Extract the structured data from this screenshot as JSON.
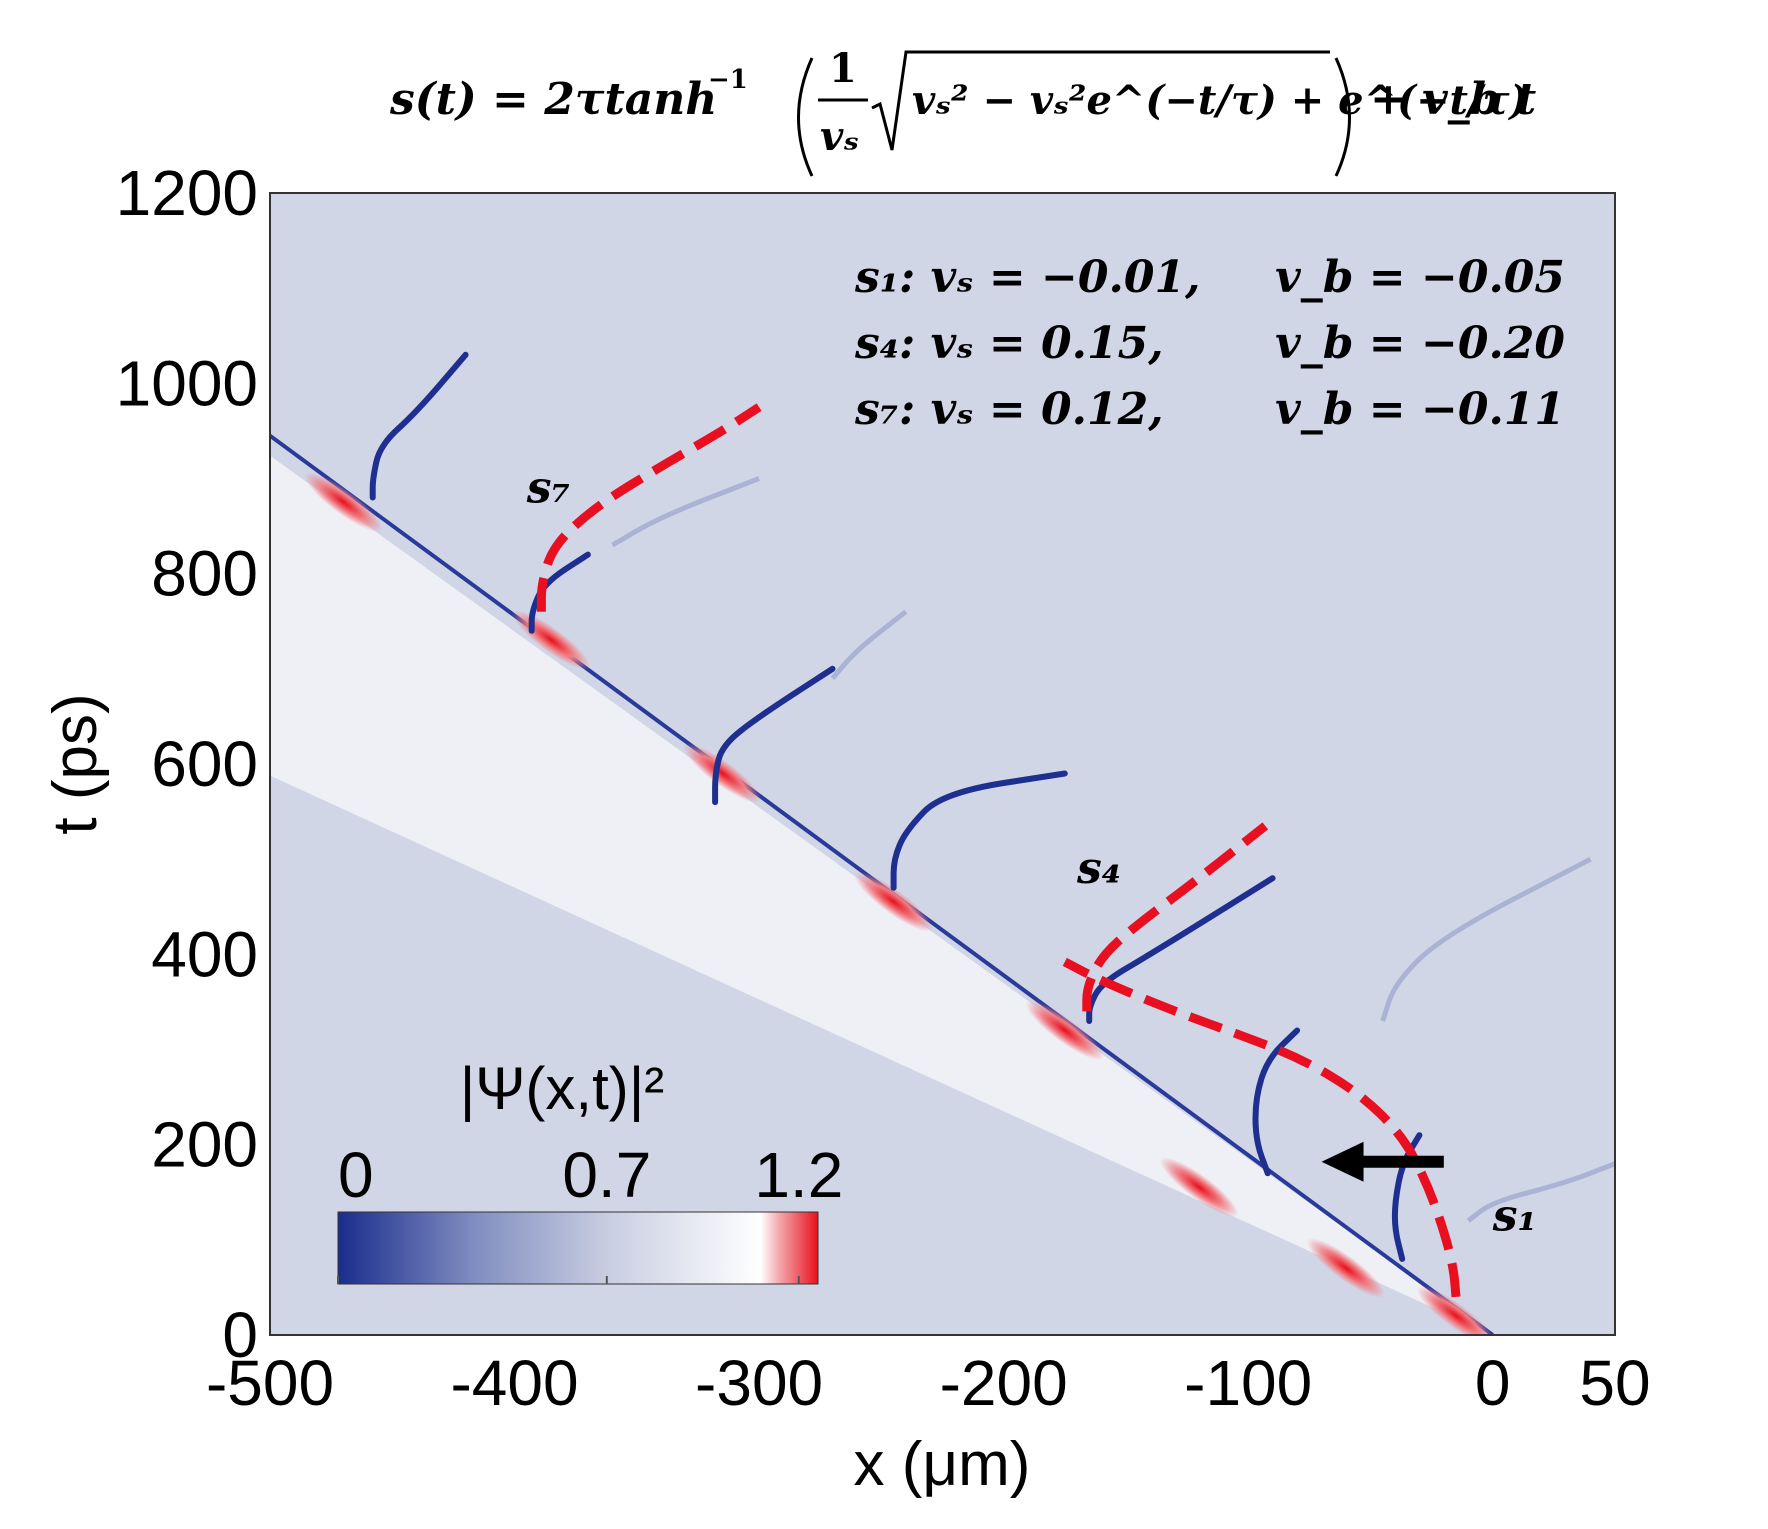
{
  "chart_data": {
    "type": "heatmap",
    "title": "s(t) = 2τtanh⁻¹((1/vₛ)√(vₛ² − vₛ²e^(−t/τ) + e^(−t/τ))) + v_b t",
    "formula": {
      "lhs": "s(t) = 2τtanh",
      "inverse_exponent": "−1",
      "frac_numerator": "1",
      "frac_denominator": "vₛ",
      "radicand": "vₛ² − vₛ²e^(−t/τ) + e^(−t/τ)",
      "rhs": "+ v_b t"
    },
    "xlabel": "x (μm)",
    "ylabel": "t (ps)",
    "xlim": [
      -500,
      50
    ],
    "ylim": [
      0,
      1200
    ],
    "x_ticks": [
      -500,
      -400,
      -300,
      -200,
      -100,
      0,
      50
    ],
    "x_tick_labels": [
      "-500",
      "-400",
      "-300",
      "-200",
      "-100",
      "0",
      "50"
    ],
    "y_ticks": [
      0,
      200,
      400,
      600,
      800,
      1000,
      1200
    ],
    "y_tick_labels": [
      "0",
      "200",
      "400",
      "600",
      "800",
      "1000",
      "1200"
    ],
    "colorbar": {
      "label": "|Ψ(x,t)|²",
      "ticks": [
        0,
        0.7,
        1.2
      ],
      "tick_labels": [
        "0",
        "0.7",
        "1.2"
      ],
      "range": [
        0,
        1.25
      ],
      "colors": {
        "low": "#1a2d8c",
        "mid": "#c6cbe0",
        "high": "#ffffff",
        "peak": "#e8101c"
      }
    },
    "background_color": "#d1d6e7",
    "soliton_params": [
      {
        "label": "s₁",
        "vs_text": "s₁: vₛ = −0.01,",
        "vb_text": "v_b = −0.05",
        "vs": -0.01,
        "vb": -0.05
      },
      {
        "label": "s₄",
        "vs_text": "s₄: vₛ = 0.15,",
        "vb_text": "v_b = −0.20",
        "vs": 0.15,
        "vb": -0.2
      },
      {
        "label": "s₇",
        "vs_text": "s₇: vₛ = 0.12,",
        "vb_text": "v_b = −0.11",
        "vs": 0.12,
        "vb": -0.11
      }
    ],
    "front_line": [
      [
        0,
        0
      ],
      [
        -500,
        945
      ]
    ],
    "blue_dark_solitons": [
      {
        "points": [
          [
            -30,
            210
          ],
          [
            -37,
            180
          ],
          [
            -40,
            140
          ],
          [
            -40,
            110
          ],
          [
            -37,
            80
          ]
        ]
      },
      {
        "points": [
          [
            -80,
            320
          ],
          [
            -92,
            290
          ],
          [
            -97,
            250
          ],
          [
            -97,
            205
          ],
          [
            -92,
            170
          ]
        ]
      },
      {
        "points": [
          [
            -90,
            480
          ],
          [
            -140,
            400
          ],
          [
            -160,
            370
          ],
          [
            -165,
            345
          ],
          [
            -165,
            330
          ]
        ]
      },
      {
        "points": [
          [
            -175,
            590
          ],
          [
            -225,
            570
          ],
          [
            -240,
            530
          ],
          [
            -245,
            500
          ],
          [
            -245,
            470
          ]
        ]
      },
      {
        "points": [
          [
            -270,
            700
          ],
          [
            -300,
            650
          ],
          [
            -315,
            620
          ],
          [
            -318,
            590
          ],
          [
            -318,
            560
          ]
        ]
      },
      {
        "points": [
          [
            -370,
            820
          ],
          [
            -388,
            790
          ],
          [
            -393,
            760
          ],
          [
            -393,
            740
          ]
        ]
      },
      {
        "points": [
          [
            -420,
            1030
          ],
          [
            -440,
            970
          ],
          [
            -455,
            935
          ],
          [
            -458,
            900
          ],
          [
            -458,
            880
          ]
        ]
      }
    ],
    "blue_faint_solitons": [
      {
        "points": [
          [
            40,
            500
          ],
          [
            -20,
            420
          ],
          [
            -40,
            370
          ],
          [
            -45,
            330
          ]
        ]
      },
      {
        "points": [
          [
            50,
            180
          ],
          [
            30,
            160
          ],
          [
            0,
            140
          ],
          [
            -10,
            120
          ]
        ]
      },
      {
        "points": [
          [
            -300,
            900
          ],
          [
            -340,
            860
          ],
          [
            -360,
            830
          ]
        ]
      },
      {
        "points": [
          [
            -240,
            760
          ],
          [
            -260,
            720
          ],
          [
            -270,
            690
          ]
        ]
      }
    ],
    "red_fit_curves": [
      {
        "label": "s₁",
        "points": [
          [
            -15,
            40
          ],
          [
            -16,
            70
          ],
          [
            -20,
            110
          ],
          [
            -27,
            160
          ],
          [
            -37,
            210
          ],
          [
            -55,
            255
          ],
          [
            -78,
            290
          ],
          [
            -103,
            315
          ],
          [
            -130,
            340
          ],
          [
            -160,
            372
          ],
          [
            -175,
            392
          ]
        ]
      },
      {
        "label": "s₄",
        "points": [
          [
            -166,
            340
          ],
          [
            -166,
            365
          ],
          [
            -160,
            398
          ],
          [
            -146,
            430
          ],
          [
            -120,
            480
          ],
          [
            -93,
            535
          ]
        ]
      },
      {
        "label": "s₇",
        "points": [
          [
            -389,
            760
          ],
          [
            -389,
            790
          ],
          [
            -384,
            830
          ],
          [
            -367,
            870
          ],
          [
            -342,
            910
          ],
          [
            -315,
            950
          ],
          [
            -300,
            975
          ]
        ]
      }
    ],
    "red_peaks": [
      {
        "x": -15,
        "t": 35
      },
      {
        "x": -60,
        "t": 85
      },
      {
        "x": -120,
        "t": 170
      },
      {
        "x": -175,
        "t": 335
      },
      {
        "x": -245,
        "t": 470
      },
      {
        "x": -315,
        "t": 605
      },
      {
        "x": -385,
        "t": 745
      },
      {
        "x": -470,
        "t": 890
      }
    ],
    "labels": [
      {
        "text": "s₇",
        "x": -395,
        "t": 875
      },
      {
        "text": "s₄",
        "x": -170,
        "t": 475
      },
      {
        "text": "s₁",
        "x": 0,
        "t": 110
      }
    ],
    "arrow": {
      "from": [
        -20,
        182
      ],
      "to": [
        -70,
        182
      ]
    }
  }
}
